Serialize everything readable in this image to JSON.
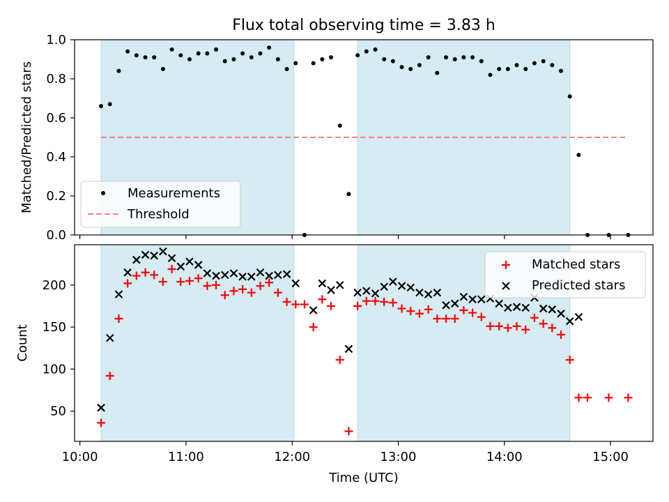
{
  "chart_data": [
    {
      "type": "scatter",
      "title": "Flux total observing time = 3.83 h",
      "xlabel": "",
      "ylabel": "Matched/Predicted stars",
      "ylim": [
        0,
        1.0
      ],
      "yticks": [
        "0.0",
        "0.2",
        "0.4",
        "0.6",
        "0.8",
        "1.0"
      ],
      "xlim": [
        "09:57",
        "15:24"
      ],
      "shaded_intervals": [
        [
          "10:12",
          "12:01"
        ],
        [
          "12:37",
          "14:37"
        ]
      ],
      "legend_position": "lower-left",
      "series": [
        {
          "name": "Measurements",
          "marker": "dot",
          "color": "#000000",
          "points": [
            [
              "10:12",
              0.66
            ],
            [
              "10:17",
              0.67
            ],
            [
              "10:22",
              0.84
            ],
            [
              "10:27",
              0.94
            ],
            [
              "10:32",
              0.92
            ],
            [
              "10:37",
              0.91
            ],
            [
              "10:42",
              0.91
            ],
            [
              "10:47",
              0.85
            ],
            [
              "10:52",
              0.95
            ],
            [
              "10:57",
              0.92
            ],
            [
              "11:02",
              0.9
            ],
            [
              "11:07",
              0.93
            ],
            [
              "11:12",
              0.93
            ],
            [
              "11:17",
              0.95
            ],
            [
              "11:22",
              0.89
            ],
            [
              "11:27",
              0.9
            ],
            [
              "11:32",
              0.93
            ],
            [
              "11:37",
              0.91
            ],
            [
              "11:42",
              0.93
            ],
            [
              "11:47",
              0.96
            ],
            [
              "11:52",
              0.9
            ],
            [
              "11:57",
              0.85
            ],
            [
              "12:02",
              0.88
            ],
            [
              "12:07",
              0.0
            ],
            [
              "12:12",
              0.88
            ],
            [
              "12:17",
              0.9
            ],
            [
              "12:22",
              0.91
            ],
            [
              "12:27",
              0.56
            ],
            [
              "12:32",
              0.21
            ],
            [
              "12:37",
              0.92
            ],
            [
              "12:42",
              0.94
            ],
            [
              "12:47",
              0.95
            ],
            [
              "12:52",
              0.9
            ],
            [
              "12:57",
              0.89
            ],
            [
              "13:02",
              0.86
            ],
            [
              "13:07",
              0.85
            ],
            [
              "13:12",
              0.87
            ],
            [
              "13:17",
              0.91
            ],
            [
              "13:22",
              0.83
            ],
            [
              "13:27",
              0.91
            ],
            [
              "13:32",
              0.9
            ],
            [
              "13:37",
              0.91
            ],
            [
              "13:42",
              0.91
            ],
            [
              "13:47",
              0.89
            ],
            [
              "13:52",
              0.82
            ],
            [
              "13:57",
              0.85
            ],
            [
              "14:02",
              0.85
            ],
            [
              "14:07",
              0.87
            ],
            [
              "14:12",
              0.85
            ],
            [
              "14:17",
              0.88
            ],
            [
              "14:22",
              0.89
            ],
            [
              "14:27",
              0.87
            ],
            [
              "14:32",
              0.84
            ],
            [
              "14:37",
              0.71
            ],
            [
              "14:42",
              0.41
            ],
            [
              "14:47",
              0.0
            ],
            [
              "14:59",
              0.0
            ],
            [
              "15:10",
              0.0
            ]
          ]
        },
        {
          "name": "Threshold",
          "marker": "dashed-line",
          "color": "#ff7f7f",
          "points": [
            [
              "10:12",
              0.5
            ],
            [
              "15:10",
              0.5
            ]
          ]
        }
      ]
    },
    {
      "type": "scatter",
      "title": "",
      "xlabel": "Time (UTC)",
      "ylabel": "Count",
      "ylim": [
        14,
        248
      ],
      "yticks": [
        "50",
        "100",
        "150",
        "200"
      ],
      "xlim": [
        "09:57",
        "15:24"
      ],
      "xticks": [
        "10:00",
        "11:00",
        "12:00",
        "13:00",
        "14:00",
        "15:00"
      ],
      "shaded_intervals": [
        [
          "10:12",
          "12:01"
        ],
        [
          "12:37",
          "14:37"
        ]
      ],
      "legend_position": "upper-right",
      "series": [
        {
          "name": "Matched stars",
          "marker": "plus",
          "color": "#ff0000",
          "points": [
            [
              "10:12",
              36
            ],
            [
              "10:17",
              92
            ],
            [
              "10:22",
              160
            ],
            [
              "10:27",
              202
            ],
            [
              "10:32",
              211
            ],
            [
              "10:37",
              215
            ],
            [
              "10:42",
              212
            ],
            [
              "10:47",
              204
            ],
            [
              "10:52",
              219
            ],
            [
              "10:57",
              204
            ],
            [
              "11:02",
              205
            ],
            [
              "11:07",
              208
            ],
            [
              "11:12",
              199
            ],
            [
              "11:17",
              200
            ],
            [
              "11:22",
              188
            ],
            [
              "11:27",
              193
            ],
            [
              "11:32",
              195
            ],
            [
              "11:37",
              191
            ],
            [
              "11:42",
              199
            ],
            [
              "11:47",
              203
            ],
            [
              "11:52",
              191
            ],
            [
              "11:57",
              180
            ],
            [
              "12:02",
              177
            ],
            [
              "12:07",
              177
            ],
            [
              "12:12",
              150
            ],
            [
              "12:17",
              183
            ],
            [
              "12:22",
              175
            ],
            [
              "12:27",
              111
            ],
            [
              "12:32",
              26
            ],
            [
              "12:37",
              175
            ],
            [
              "12:42",
              181
            ],
            [
              "12:47",
              181
            ],
            [
              "12:52",
              180
            ],
            [
              "12:57",
              179
            ],
            [
              "13:02",
              172
            ],
            [
              "13:07",
              169
            ],
            [
              "13:12",
              166
            ],
            [
              "13:17",
              171
            ],
            [
              "13:22",
              160
            ],
            [
              "13:27",
              160
            ],
            [
              "13:32",
              160
            ],
            [
              "13:37",
              170
            ],
            [
              "13:42",
              167
            ],
            [
              "13:47",
              162
            ],
            [
              "13:52",
              151
            ],
            [
              "13:57",
              151
            ],
            [
              "14:02",
              149
            ],
            [
              "14:07",
              151
            ],
            [
              "14:12",
              147
            ],
            [
              "14:17",
              161
            ],
            [
              "14:22",
              154
            ],
            [
              "14:27",
              149
            ],
            [
              "14:32",
              141
            ],
            [
              "14:37",
              111
            ],
            [
              "14:42",
              66
            ],
            [
              "14:47",
              66
            ],
            [
              "14:59",
              66
            ],
            [
              "15:10",
              66
            ]
          ]
        },
        {
          "name": "Predicted stars",
          "marker": "x",
          "color": "#000000",
          "points": [
            [
              "10:12",
              54
            ],
            [
              "10:17",
              137
            ],
            [
              "10:22",
              189
            ],
            [
              "10:27",
              215
            ],
            [
              "10:32",
              230
            ],
            [
              "10:37",
              236
            ],
            [
              "10:42",
              235
            ],
            [
              "10:47",
              240
            ],
            [
              "10:52",
              232
            ],
            [
              "10:57",
              222
            ],
            [
              "11:02",
              228
            ],
            [
              "11:07",
              224
            ],
            [
              "11:12",
              214
            ],
            [
              "11:17",
              211
            ],
            [
              "11:22",
              212
            ],
            [
              "11:27",
              214
            ],
            [
              "11:32",
              210
            ],
            [
              "11:37",
              210
            ],
            [
              "11:42",
              215
            ],
            [
              "11:47",
              211
            ],
            [
              "11:52",
              212
            ],
            [
              "11:57",
              213
            ],
            [
              "12:02",
              202
            ],
            [
              "12:12",
              170
            ],
            [
              "12:17",
              202
            ],
            [
              "12:22",
              194
            ],
            [
              "12:27",
              200
            ],
            [
              "12:32",
              124
            ],
            [
              "12:37",
              191
            ],
            [
              "12:42",
              193
            ],
            [
              "12:47",
              190
            ],
            [
              "12:52",
              198
            ],
            [
              "12:57",
              204
            ],
            [
              "13:02",
              199
            ],
            [
              "13:07",
              197
            ],
            [
              "13:12",
              191
            ],
            [
              "13:17",
              189
            ],
            [
              "13:22",
              191
            ],
            [
              "13:27",
              176
            ],
            [
              "13:32",
              178
            ],
            [
              "13:37",
              186
            ],
            [
              "13:42",
              183
            ],
            [
              "13:47",
              183
            ],
            [
              "13:52",
              184
            ],
            [
              "13:57",
              178
            ],
            [
              "14:02",
              173
            ],
            [
              "14:07",
              174
            ],
            [
              "14:12",
              173
            ],
            [
              "14:17",
              185
            ],
            [
              "14:22",
              172
            ],
            [
              "14:27",
              171
            ],
            [
              "14:32",
              166
            ],
            [
              "14:37",
              157
            ],
            [
              "14:42",
              162
            ]
          ]
        }
      ]
    }
  ]
}
